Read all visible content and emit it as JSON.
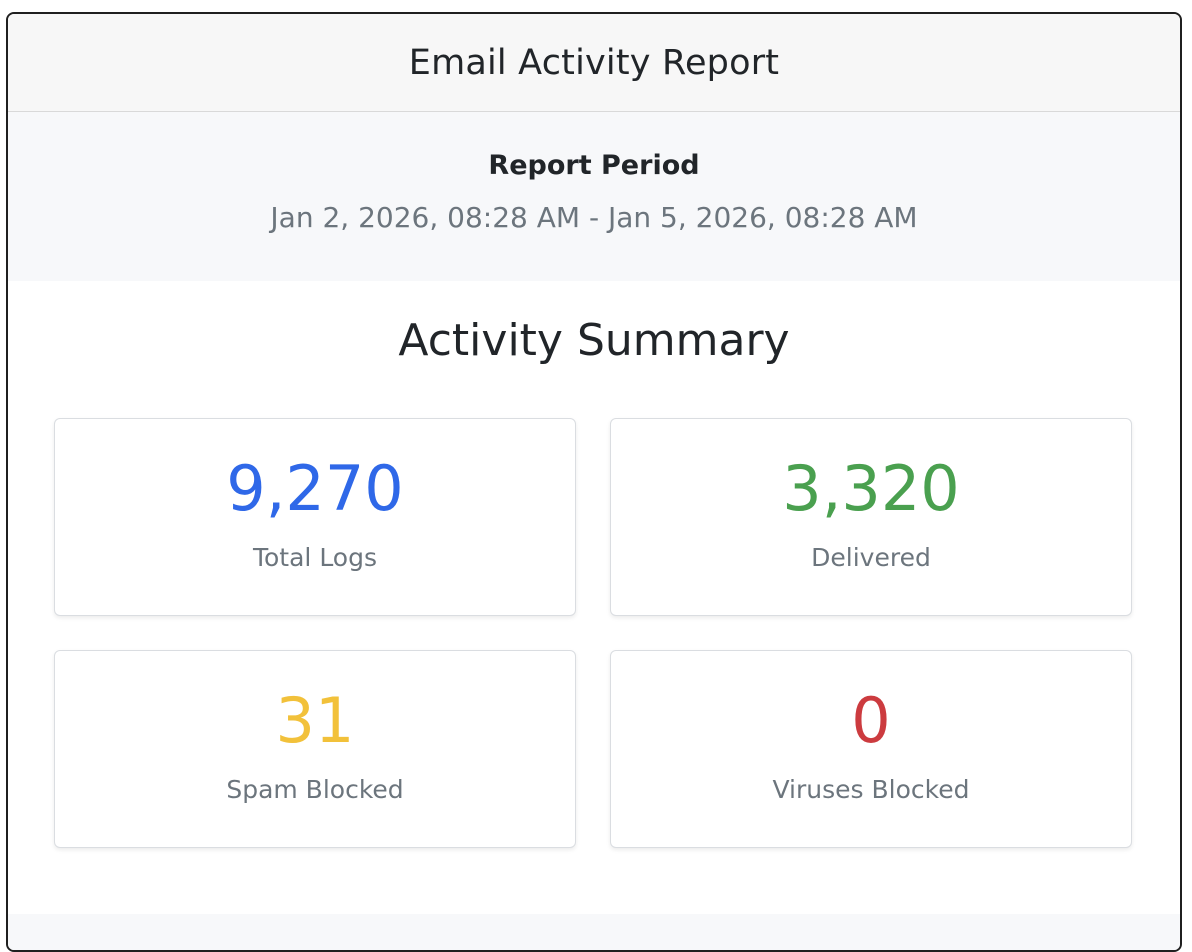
{
  "report": {
    "title": "Email Activity Report",
    "period_label": "Report Period",
    "period_range": "Jan 2, 2026, 08:28 AM - Jan 5, 2026, 08:28 AM",
    "summary_title": "Activity Summary"
  },
  "stats": [
    {
      "value": "9,270",
      "label": "Total Logs",
      "color": "#2f68e8"
    },
    {
      "value": "3,320",
      "label": "Delivered",
      "color": "#4aa04f"
    },
    {
      "value": "31",
      "label": "Spam Blocked",
      "color": "#f2c13a"
    },
    {
      "value": "0",
      "label": "Viruses Blocked",
      "color": "#cc3b3f"
    }
  ]
}
